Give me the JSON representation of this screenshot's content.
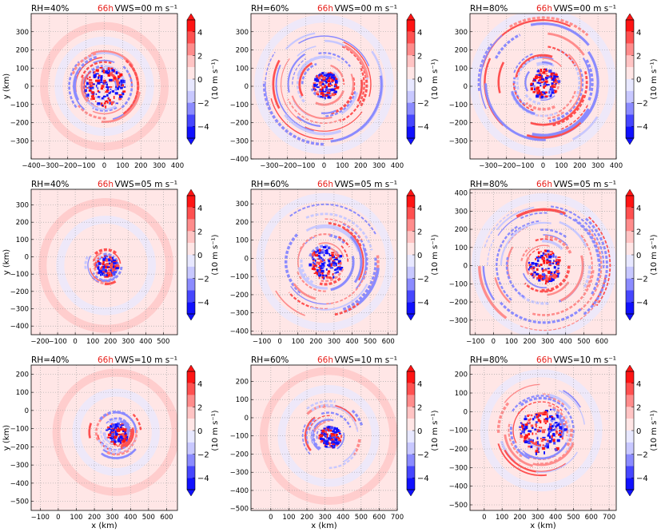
{
  "figure": {
    "time_label": "66h",
    "time_color": "#e8201b",
    "colorbar_label": "(10 m s⁻¹)",
    "colorbar_ticks": [
      "4",
      "2",
      "0",
      "−2",
      "−4"
    ],
    "colormap": [
      "#1010ff",
      "#4646ff",
      "#8b8bff",
      "#c8c8ff",
      "#e8e8ff",
      "#ffe6e6",
      "#ffc4c4",
      "#ff8c8c",
      "#ff5050",
      "#ff1414"
    ],
    "xlabel": "x (km)",
    "ylabel": "y (km)"
  },
  "chart_data": [
    {
      "type": "heatmap",
      "rh": "RH=40%",
      "vws": "VWS=00 m s⁻¹",
      "xlim": [
        -400,
        400
      ],
      "ylim": [
        -400,
        400
      ],
      "xticks": [
        -400,
        -300,
        -200,
        -100,
        0,
        100,
        200,
        300,
        400
      ],
      "yticks": [
        -300,
        -200,
        -100,
        0,
        100,
        200,
        300
      ],
      "center": [
        0,
        0
      ],
      "core_radius": 110,
      "spiral_extent": 200,
      "outer_rings": [
        250,
        330
      ]
    },
    {
      "type": "heatmap",
      "rh": "RH=60%",
      "vws": "VWS=00 m s⁻¹",
      "xlim": [
        -400,
        400
      ],
      "ylim": [
        -400,
        400
      ],
      "xticks": [
        -300,
        -200,
        -100,
        0,
        100,
        200,
        300,
        400
      ],
      "yticks": [
        -400,
        -300,
        -200,
        -100,
        0,
        100,
        200,
        300
      ],
      "center": [
        0,
        10
      ],
      "core_radius": 70,
      "spiral_extent": 330,
      "outer_rings": [
        360
      ]
    },
    {
      "type": "heatmap",
      "rh": "RH=80%",
      "vws": "VWS=00 m s⁻¹",
      "xlim": [
        -400,
        400
      ],
      "ylim": [
        -400,
        400
      ],
      "xticks": [
        -300,
        -200,
        -100,
        0,
        100,
        200,
        300,
        400
      ],
      "yticks": [
        -300,
        -200,
        -100,
        0,
        100,
        200,
        300
      ],
      "center": [
        0,
        20
      ],
      "core_radius": 80,
      "spiral_extent": 360,
      "outer_rings": [
        380
      ]
    },
    {
      "type": "heatmap",
      "rh": "RH=40%",
      "vws": "VWS=05 m s⁻¹",
      "xlim": [
        -250,
        580
      ],
      "ylim": [
        -450,
        390
      ],
      "xticks": [
        -200,
        -100,
        0,
        100,
        200,
        300,
        400,
        500
      ],
      "yticks": [
        -400,
        -300,
        -200,
        -100,
        0,
        100,
        200,
        300
      ],
      "center": [
        175,
        -50
      ],
      "core_radius": 60,
      "spiral_extent": 120,
      "outer_rings": [
        260,
        360
      ]
    },
    {
      "type": "heatmap",
      "rh": "RH=60%",
      "vws": "VWS=05 m s⁻¹",
      "xlim": [
        -160,
        650
      ],
      "ylim": [
        -420,
        380
      ],
      "xticks": [
        -100,
        0,
        100,
        200,
        300,
        400,
        500,
        600
      ],
      "yticks": [
        -400,
        -300,
        -200,
        -100,
        0,
        100,
        200,
        300
      ],
      "center": [
        250,
        -20
      ],
      "core_radius": 90,
      "spiral_extent": 320,
      "outer_rings": [
        360
      ]
    },
    {
      "type": "heatmap",
      "rh": "RH=80%",
      "vws": "VWS=05 m s⁻¹",
      "xlim": [
        -130,
        680
      ],
      "ylim": [
        -380,
        420
      ],
      "xticks": [
        -100,
        0,
        100,
        200,
        300,
        400,
        500,
        600
      ],
      "yticks": [
        -300,
        -200,
        -100,
        0,
        100,
        200,
        300,
        400
      ],
      "center": [
        280,
        0
      ],
      "core_radius": 90,
      "spiral_extent": 370,
      "outer_rings": [
        380
      ]
    },
    {
      "type": "heatmap",
      "rh": "RH=40%",
      "vws": "VWS=10 m s⁻¹",
      "xlim": [
        -150,
        660
      ],
      "ylim": [
        -550,
        250
      ],
      "xticks": [
        -100,
        0,
        100,
        200,
        300,
        400,
        500,
        600
      ],
      "yticks": [
        -500,
        -400,
        -300,
        -200,
        -100,
        0,
        100,
        200
      ],
      "center": [
        320,
        -120
      ],
      "core_radius": 60,
      "spiral_extent": 150,
      "outer_rings": [
        220,
        330
      ]
    },
    {
      "type": "heatmap",
      "rh": "RH=60%",
      "vws": "VWS=10 m s⁻¹",
      "xlim": [
        -110,
        700
      ],
      "ylim": [
        -510,
        290
      ],
      "xticks": [
        0,
        100,
        200,
        300,
        400,
        500,
        600,
        700
      ],
      "yticks": [
        -500,
        -400,
        -300,
        -200,
        -100,
        0,
        100,
        200
      ],
      "center": [
        320,
        -100
      ],
      "core_radius": 60,
      "spiral_extent": 200,
      "outer_rings": [
        260,
        360
      ]
    },
    {
      "type": "heatmap",
      "rh": "RH=80%",
      "vws": "VWS=10 m s⁻¹",
      "xlim": [
        -80,
        740
      ],
      "ylim": [
        -530,
        250
      ],
      "xticks": [
        0,
        100,
        200,
        300,
        400,
        500,
        600,
        700
      ],
      "yticks": [
        -500,
        -400,
        -300,
        -200,
        -100,
        0,
        100,
        200
      ],
      "center": [
        320,
        -100
      ],
      "core_radius": 130,
      "spiral_extent": 260,
      "outer_rings": [
        320
      ]
    }
  ]
}
